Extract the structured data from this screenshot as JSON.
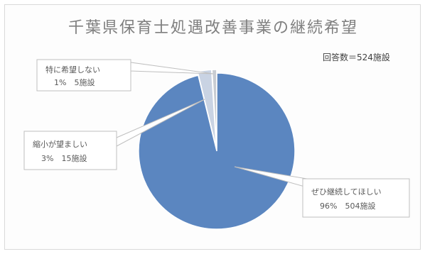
{
  "chart_data": {
    "type": "pie",
    "title": "千葉県保育士処遇改善事業の継続希望",
    "note": "回答数＝524施設",
    "slices": [
      {
        "name": "ぜひ継続してほしい",
        "percent": "96%",
        "count": "504施設",
        "value": 504,
        "color": "#5b86c0"
      },
      {
        "name": "縮小が望ましい",
        "percent": "3%",
        "count": "15施設",
        "value": 15,
        "color": "#c9d3e3"
      },
      {
        "name": "特に希望しない",
        "percent": "1%",
        "count": "5施設",
        "value": 5,
        "color": "#c8ccd2"
      }
    ]
  }
}
